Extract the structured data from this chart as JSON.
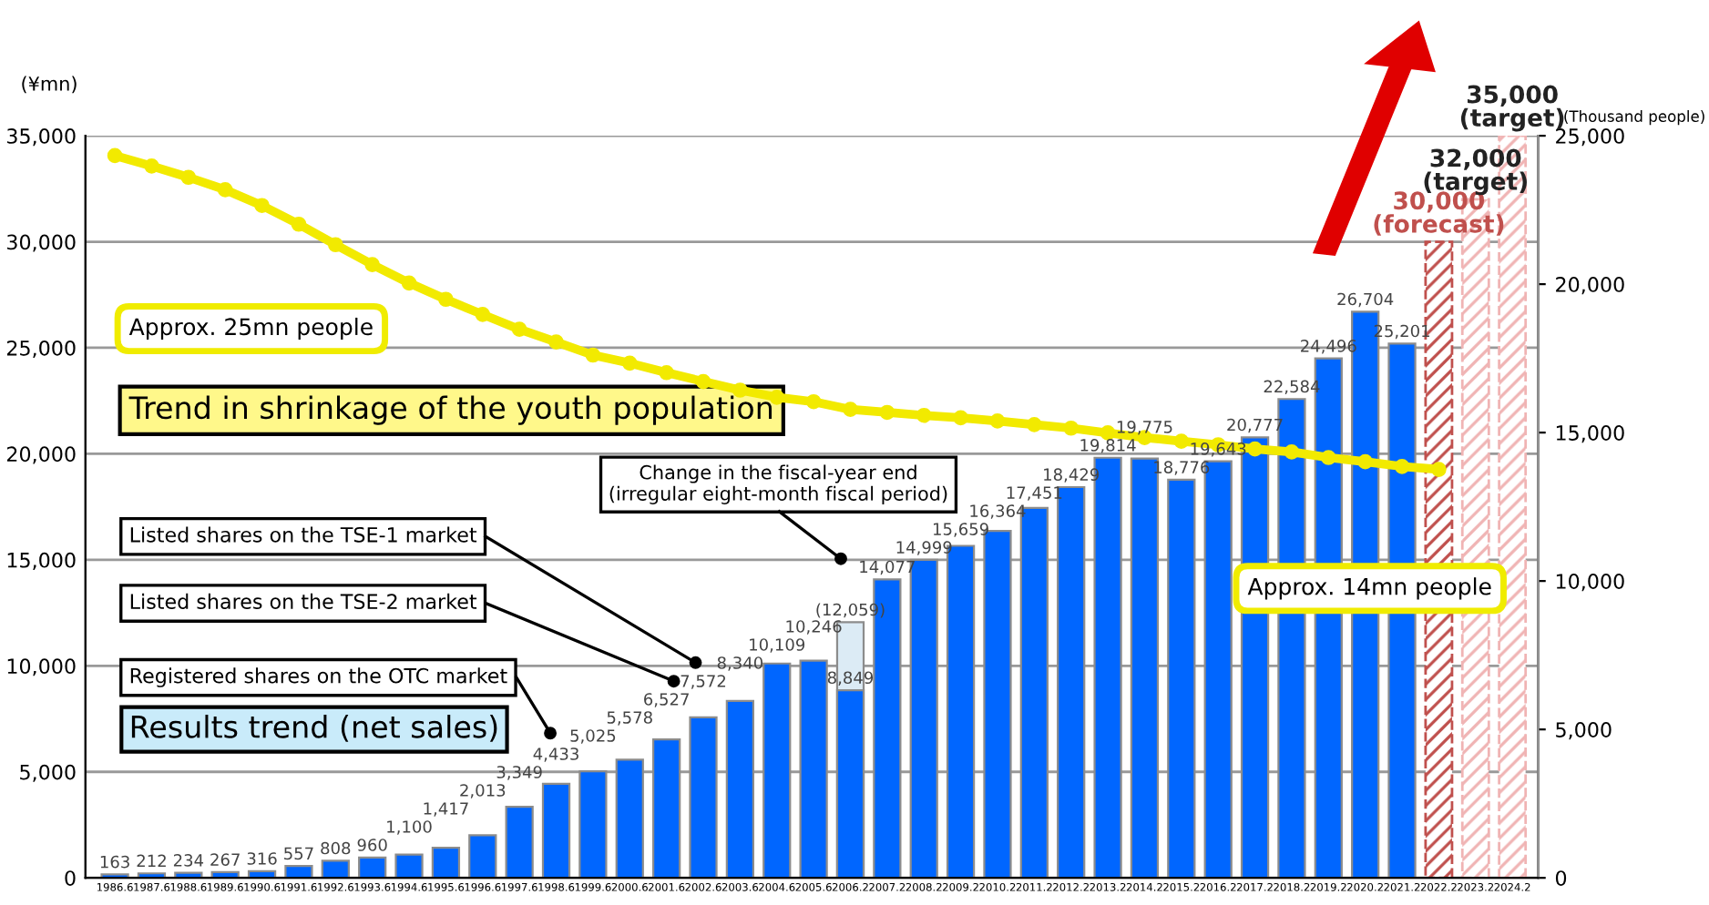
{
  "chart_data": {
    "type": "bar",
    "ylabel": "(¥mn)",
    "y2label": "(Thousand people)",
    "categories": [
      "1986.6",
      "1987.6",
      "1988.6",
      "1989.6",
      "1990.6",
      "1991.6",
      "1992.6",
      "1993.6",
      "1994.6",
      "1995.6",
      "1996.6",
      "1997.6",
      "1998.6",
      "1999.6",
      "2000.6",
      "2001.6",
      "2002.6",
      "2003.6",
      "2004.6",
      "2005.6",
      "2006.2",
      "2007.2",
      "2008.2",
      "2009.2",
      "2010.2",
      "2011.2",
      "2012.2",
      "2013.2",
      "2014.2",
      "2015.2",
      "2016.2",
      "2017.2",
      "2018.2",
      "2019.2",
      "2020.2",
      "2021.2",
      "2022.2",
      "2023.2",
      "2024.2"
    ],
    "series": [
      {
        "color": "#dcebf5",
        "values": [
          null,
          null,
          null,
          null,
          null,
          null,
          null,
          null,
          null,
          null,
          null,
          null,
          null,
          null,
          null,
          null,
          null,
          null,
          null,
          null,
          12059,
          null,
          null,
          null,
          null,
          null,
          null,
          null,
          null,
          null,
          null,
          null,
          null,
          null,
          null,
          null,
          null,
          null,
          null
        ],
        "value_labels": [
          null,
          null,
          null,
          null,
          null,
          null,
          null,
          null,
          null,
          null,
          null,
          null,
          null,
          null,
          null,
          null,
          null,
          null,
          null,
          null,
          "(12,059)",
          null,
          null,
          null,
          null,
          null,
          null,
          null,
          null,
          null,
          null,
          null,
          null,
          null,
          null,
          null,
          null,
          null,
          null
        ]
      },
      {
        "color": "#0066ff",
        "values": [
          163,
          212,
          234,
          267,
          316,
          557,
          808,
          960,
          1100,
          1417,
          2013,
          3349,
          4433,
          5025,
          5578,
          6527,
          7572,
          8340,
          10109,
          10246,
          8849,
          14077,
          14999,
          15659,
          16364,
          17451,
          18429,
          19814,
          19775,
          18776,
          19643,
          20777,
          22584,
          24496,
          26704,
          25201,
          null,
          null,
          null
        ],
        "value_labels": [
          "163",
          "212",
          "234",
          "267",
          "316",
          "557",
          "808",
          "960",
          "1,100",
          "1,417",
          "2,013",
          "3,349",
          "4,433",
          "5,025",
          "5,578",
          "6,527",
          "7,572",
          "8,340",
          "10,109",
          "10,246",
          "8,849",
          "14,077",
          "14,999",
          "15,659",
          "16,364",
          "17,451",
          "18,429",
          "19,814",
          "19,775",
          "18,776",
          "19,643",
          "20,777",
          "22,584",
          "24,496",
          "26,704",
          "25,201",
          null,
          null,
          null
        ]
      },
      {
        "color": "#c0504d",
        "values": [
          null,
          null,
          null,
          null,
          null,
          null,
          null,
          null,
          null,
          null,
          null,
          null,
          null,
          null,
          null,
          null,
          null,
          null,
          null,
          null,
          null,
          null,
          null,
          null,
          null,
          null,
          null,
          null,
          null,
          null,
          null,
          null,
          null,
          null,
          null,
          null,
          30000,
          null,
          null
        ],
        "value_labels": [
          null,
          null,
          null,
          null,
          null,
          null,
          null,
          null,
          null,
          null,
          null,
          null,
          null,
          null,
          null,
          null,
          null,
          null,
          null,
          null,
          null,
          null,
          null,
          null,
          null,
          null,
          null,
          null,
          null,
          null,
          null,
          null,
          null,
          null,
          null,
          null,
          "30,000\n(forecast)",
          null,
          null
        ]
      },
      {
        "color": "#f0b4b4",
        "values": [
          null,
          null,
          null,
          null,
          null,
          null,
          null,
          null,
          null,
          null,
          null,
          null,
          null,
          null,
          null,
          null,
          null,
          null,
          null,
          null,
          null,
          null,
          null,
          null,
          null,
          null,
          null,
          null,
          null,
          null,
          null,
          null,
          null,
          null,
          null,
          null,
          null,
          32000,
          35000
        ],
        "value_labels": [
          null,
          null,
          null,
          null,
          null,
          null,
          null,
          null,
          null,
          null,
          null,
          null,
          null,
          null,
          null,
          null,
          null,
          null,
          null,
          null,
          null,
          null,
          null,
          null,
          null,
          null,
          null,
          null,
          null,
          null,
          null,
          null,
          null,
          null,
          null,
          null,
          null,
          "32,000\n(target)",
          "35,000\n(target)"
        ]
      },
      {
        "type": "line",
        "axis": "y2",
        "marker": "circle",
        "color": "#f2ea00",
        "values": [
          24330,
          23980,
          23600,
          23180,
          22650,
          22020,
          21330,
          20660,
          20040,
          19490,
          18980,
          18480,
          18050,
          17610,
          17340,
          17020,
          16720,
          16430,
          16190,
          16040,
          15780,
          15680,
          15580,
          15500,
          15390,
          15270,
          15150,
          14990,
          14830,
          14710,
          14590,
          14450,
          14350,
          14160,
          14020,
          13860,
          13760,
          null,
          null
        ]
      }
    ],
    "ylim": [
      0,
      35000
    ],
    "yticks": [
      {
        "value": 0,
        "label": "0"
      },
      {
        "value": 5000,
        "label": "5,000"
      },
      {
        "value": 10000,
        "label": "10,000"
      },
      {
        "value": 15000,
        "label": "15,000"
      },
      {
        "value": 20000,
        "label": "20,000"
      },
      {
        "value": 25000,
        "label": "25,000"
      },
      {
        "value": 30000,
        "label": "30,000"
      },
      {
        "value": 35000,
        "label": "35,000"
      }
    ],
    "y2lim": [
      0,
      25000
    ],
    "y2ticks": [
      {
        "value": 0,
        "label": "0"
      },
      {
        "value": 5000,
        "label": "5,000"
      },
      {
        "value": 10000,
        "label": "10,000"
      },
      {
        "value": 15000,
        "label": "15,000"
      },
      {
        "value": 20000,
        "label": "20,000"
      },
      {
        "value": 25000,
        "label": "25,000"
      }
    ],
    "grid": "y",
    "annotations": [
      "Approx. 25mn people",
      "Trend in shrinkage of the youth population",
      "Results trend (net sales)",
      "Approx. 14mn people",
      "Registered shares on the OTC market",
      "Listed shares on the TSE-2 market",
      "Listed shares on the TSE-1 market",
      "Change in the fiscal-year end\n(irregular eight-month fiscal period)"
    ]
  }
}
